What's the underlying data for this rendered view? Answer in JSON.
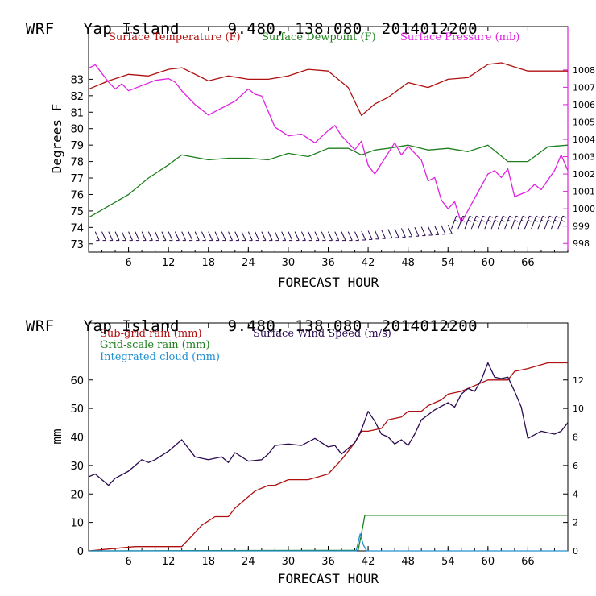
{
  "panels": [
    {
      "header": {
        "model": "WRF",
        "location": "Yap Island",
        "coords": "9.480, 138.080",
        "init": "2014012200"
      },
      "xlabel": "FORECAST HOUR",
      "ylabel": "Degrees F"
    },
    {
      "header": {
        "model": "WRF",
        "location": "Yap Island",
        "coords": "9.480, 138.080",
        "init": "2014012200"
      },
      "xlabel": "FORECAST HOUR",
      "ylabel": "mm"
    }
  ],
  "chart_data": [
    {
      "type": "line",
      "title": "WRF Yap Island 9.480, 138.080 2014012200",
      "xlabel": "FORECAST HOUR",
      "ylabel": "Degrees F",
      "xlim": [
        0,
        72
      ],
      "ylim": [
        72.5,
        86.2
      ],
      "y2lim": [
        997.5,
        1010.5
      ],
      "xticks": [
        6,
        12,
        18,
        24,
        30,
        36,
        42,
        48,
        54,
        60,
        66
      ],
      "yticks": [
        73,
        74,
        75,
        76,
        77,
        78,
        79,
        80,
        81,
        82,
        83
      ],
      "y2ticks": [
        998,
        999,
        1000,
        1001,
        1002,
        1003,
        1004,
        1005,
        1006,
        1007,
        1008
      ],
      "legend_position": "top",
      "series": [
        {
          "name": "Surface Temperature (F)",
          "color": "#b01010",
          "axis": "left",
          "x": [
            0,
            3,
            6,
            9,
            12,
            14,
            18,
            21,
            24,
            27,
            30,
            33,
            36,
            39,
            41,
            43,
            45,
            48,
            51,
            54,
            57,
            60,
            62,
            66,
            72
          ],
          "y": [
            82.4,
            82.9,
            83.3,
            83.2,
            83.6,
            83.7,
            82.9,
            83.2,
            83.0,
            83.0,
            83.2,
            83.6,
            83.5,
            82.5,
            80.8,
            81.5,
            81.9,
            82.8,
            82.5,
            83.0,
            83.1,
            83.9,
            84.0,
            83.5,
            83.5
          ]
        },
        {
          "name": "Surface Dewpoint (F)",
          "color": "#208020",
          "axis": "left",
          "x": [
            0,
            3,
            6,
            9,
            12,
            14,
            18,
            21,
            24,
            27,
            30,
            33,
            36,
            39,
            41,
            43,
            45,
            48,
            51,
            54,
            57,
            60,
            63,
            66,
            69,
            72
          ],
          "y": [
            74.6,
            75.3,
            76.0,
            77.0,
            77.8,
            78.4,
            78.1,
            78.2,
            78.2,
            78.1,
            78.5,
            78.3,
            78.8,
            78.8,
            78.4,
            78.7,
            78.8,
            79.0,
            78.7,
            78.8,
            78.6,
            79.0,
            78.0,
            78.0,
            78.9,
            79.0
          ]
        },
        {
          "name": "Surface Pressure (mb)",
          "color": "#e020e0",
          "axis": "right",
          "x": [
            0,
            1,
            2,
            3,
            4,
            5,
            6,
            8,
            10,
            12,
            13,
            14,
            16,
            18,
            20,
            22,
            24,
            25,
            26,
            28,
            30,
            32,
            34,
            36,
            37,
            38,
            40,
            41,
            42,
            43,
            45,
            46,
            47,
            48,
            50,
            51,
            52,
            53,
            54,
            55,
            56,
            58,
            60,
            61,
            62,
            63,
            64,
            66,
            67,
            68,
            70,
            71,
            72
          ],
          "y": [
            1008.1,
            1008.3,
            1007.8,
            1007.3,
            1006.9,
            1007.2,
            1006.8,
            1007.1,
            1007.4,
            1007.5,
            1007.3,
            1006.8,
            1006.0,
            1005.4,
            1005.8,
            1006.2,
            1006.9,
            1006.6,
            1006.5,
            1004.7,
            1004.2,
            1004.3,
            1003.8,
            1004.5,
            1004.8,
            1004.2,
            1003.4,
            1003.9,
            1002.5,
            1002.0,
            1003.2,
            1003.8,
            1003.1,
            1003.6,
            1002.8,
            1001.6,
            1001.8,
            1000.5,
            1000.0,
            1000.4,
            999.2,
            1000.6,
            1002.0,
            1002.2,
            1001.8,
            1002.3,
            1000.7,
            1001.0,
            1001.4,
            1001.1,
            1002.2,
            1003.1,
            1002.2
          ]
        }
      ],
      "wind_barbs": {
        "y_level": 73.4,
        "x_start": 1,
        "x_end": 71,
        "step": 1
      }
    },
    {
      "type": "line",
      "title": "WRF Yap Island 9.480, 138.080 2014012200",
      "xlabel": "FORECAST HOUR",
      "ylabel": "mm",
      "xlim": [
        0,
        72
      ],
      "ylim": [
        0,
        80
      ],
      "y2lim": [
        0,
        16
      ],
      "xticks": [
        6,
        12,
        18,
        24,
        30,
        36,
        42,
        48,
        54,
        60,
        66
      ],
      "yticks": [
        0,
        10,
        20,
        30,
        40,
        50,
        60
      ],
      "y2ticks": [
        0,
        2,
        4,
        6,
        8,
        10,
        12
      ],
      "legend_position": "top-left",
      "series": [
        {
          "name": "Sub-grid rain (mm)",
          "color": "#b01010",
          "axis": "left",
          "x": [
            0,
            7,
            14,
            15,
            17,
            19,
            21,
            22,
            24,
            25,
            27,
            28,
            30,
            33,
            36,
            38,
            40,
            41,
            42,
            44,
            45,
            47,
            48,
            50,
            51,
            53,
            54,
            56,
            57,
            60,
            63,
            64,
            66,
            69,
            72
          ],
          "y": [
            0,
            1.5,
            1.5,
            4,
            9,
            12,
            12,
            15,
            19,
            21,
            23,
            23,
            25,
            25,
            27,
            32,
            38,
            42,
            42,
            43,
            46,
            47,
            49,
            49,
            51,
            53,
            55,
            56,
            57,
            60,
            60,
            63,
            64,
            66,
            66
          ]
        },
        {
          "name": "Grid-scale rain (mm)",
          "color": "#208020",
          "axis": "left",
          "x": [
            0,
            40.5,
            41,
            41.5,
            72
          ],
          "y": [
            0,
            0.2,
            6,
            12.5,
            12.5
          ]
        },
        {
          "name": "Integrated cloud (mm)",
          "color": "#2090d0",
          "axis": "left",
          "x": [
            0,
            40.2,
            40.8,
            41.3,
            41.8,
            72
          ],
          "y": [
            0,
            0,
            6,
            2,
            0,
            0
          ]
        },
        {
          "name": "Surface Wind Speed (m/s)",
          "color": "#2a0a50",
          "axis": "right",
          "x": [
            0,
            1,
            2,
            3,
            4,
            6,
            8,
            9,
            10,
            12,
            14,
            16,
            18,
            20,
            21,
            22,
            24,
            26,
            27,
            28,
            30,
            32,
            34,
            36,
            37,
            38,
            40,
            41,
            42,
            43,
            44,
            45,
            46,
            47,
            48,
            49,
            50,
            52,
            54,
            55,
            56,
            57,
            58,
            59,
            60,
            61,
            62,
            63,
            64,
            65,
            66,
            68,
            70,
            71,
            72
          ],
          "y": [
            5.2,
            5.4,
            5.0,
            4.6,
            5.1,
            5.6,
            6.4,
            6.2,
            6.4,
            7.0,
            7.8,
            6.6,
            6.4,
            6.6,
            6.2,
            6.9,
            6.3,
            6.4,
            6.8,
            7.4,
            7.5,
            7.4,
            7.9,
            7.3,
            7.4,
            6.8,
            7.6,
            8.5,
            9.8,
            9.1,
            8.2,
            8.0,
            7.5,
            7.8,
            7.4,
            8.2,
            9.2,
            9.9,
            10.4,
            10.1,
            11.0,
            11.4,
            11.2,
            12.0,
            13.2,
            12.2,
            12.1,
            12.2,
            11.2,
            10.1,
            7.9,
            8.4,
            8.2,
            8.4,
            9.0
          ]
        }
      ]
    }
  ]
}
